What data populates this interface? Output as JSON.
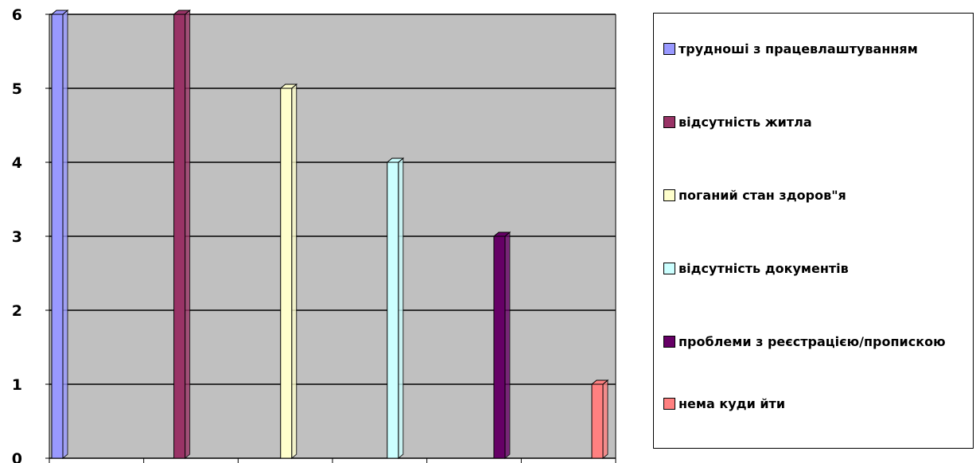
{
  "chart_data": {
    "type": "bar",
    "categories": [
      "трудноші з працевлаштуванням",
      "відсутність житла",
      "поганий стан здоров\"я",
      "відсутність документів",
      "проблеми з реєстрацією/пропискою",
      "нема куди йти"
    ],
    "values": [
      6,
      6,
      5,
      4,
      3,
      1
    ],
    "colors": [
      "#9999ff",
      "#993366",
      "#ffffcc",
      "#ccffff",
      "#660066",
      "#ff8080"
    ],
    "ylim": [
      0,
      6
    ],
    "yticks": [
      "0",
      "1",
      "2",
      "3",
      "4",
      "5",
      "6"
    ],
    "grid": true,
    "plot_background": "#c0c0c0",
    "legend_position": "right",
    "title": "",
    "xlabel": "",
    "ylabel": ""
  },
  "legend": {
    "items": [
      "трудноші з працевлаштуванням",
      "відсутність житла",
      "поганий стан здоров\"я",
      "відсутність документів",
      "проблеми з реєстрацією/пропискою",
      "нема куди йти"
    ]
  }
}
